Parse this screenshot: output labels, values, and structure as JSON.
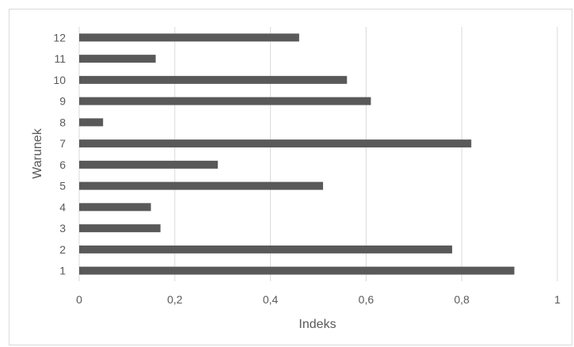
{
  "chart_data": {
    "type": "bar",
    "orientation": "horizontal",
    "categories": [
      "1",
      "2",
      "3",
      "4",
      "5",
      "6",
      "7",
      "8",
      "9",
      "10",
      "11",
      "12"
    ],
    "values": [
      0.91,
      0.78,
      0.17,
      0.15,
      0.51,
      0.29,
      0.82,
      0.05,
      0.61,
      0.56,
      0.16,
      0.46
    ],
    "xlabel": "Indeks",
    "ylabel": "Warunek",
    "xlim": [
      0,
      1
    ],
    "xticks": [
      "0",
      "0,2",
      "0,4",
      "0,6",
      "0,8",
      "1"
    ],
    "grid": "vertical",
    "legend": "none",
    "colors": {
      "bar": "#595959",
      "grid": "#d9d9d9",
      "text": "#595959"
    }
  }
}
